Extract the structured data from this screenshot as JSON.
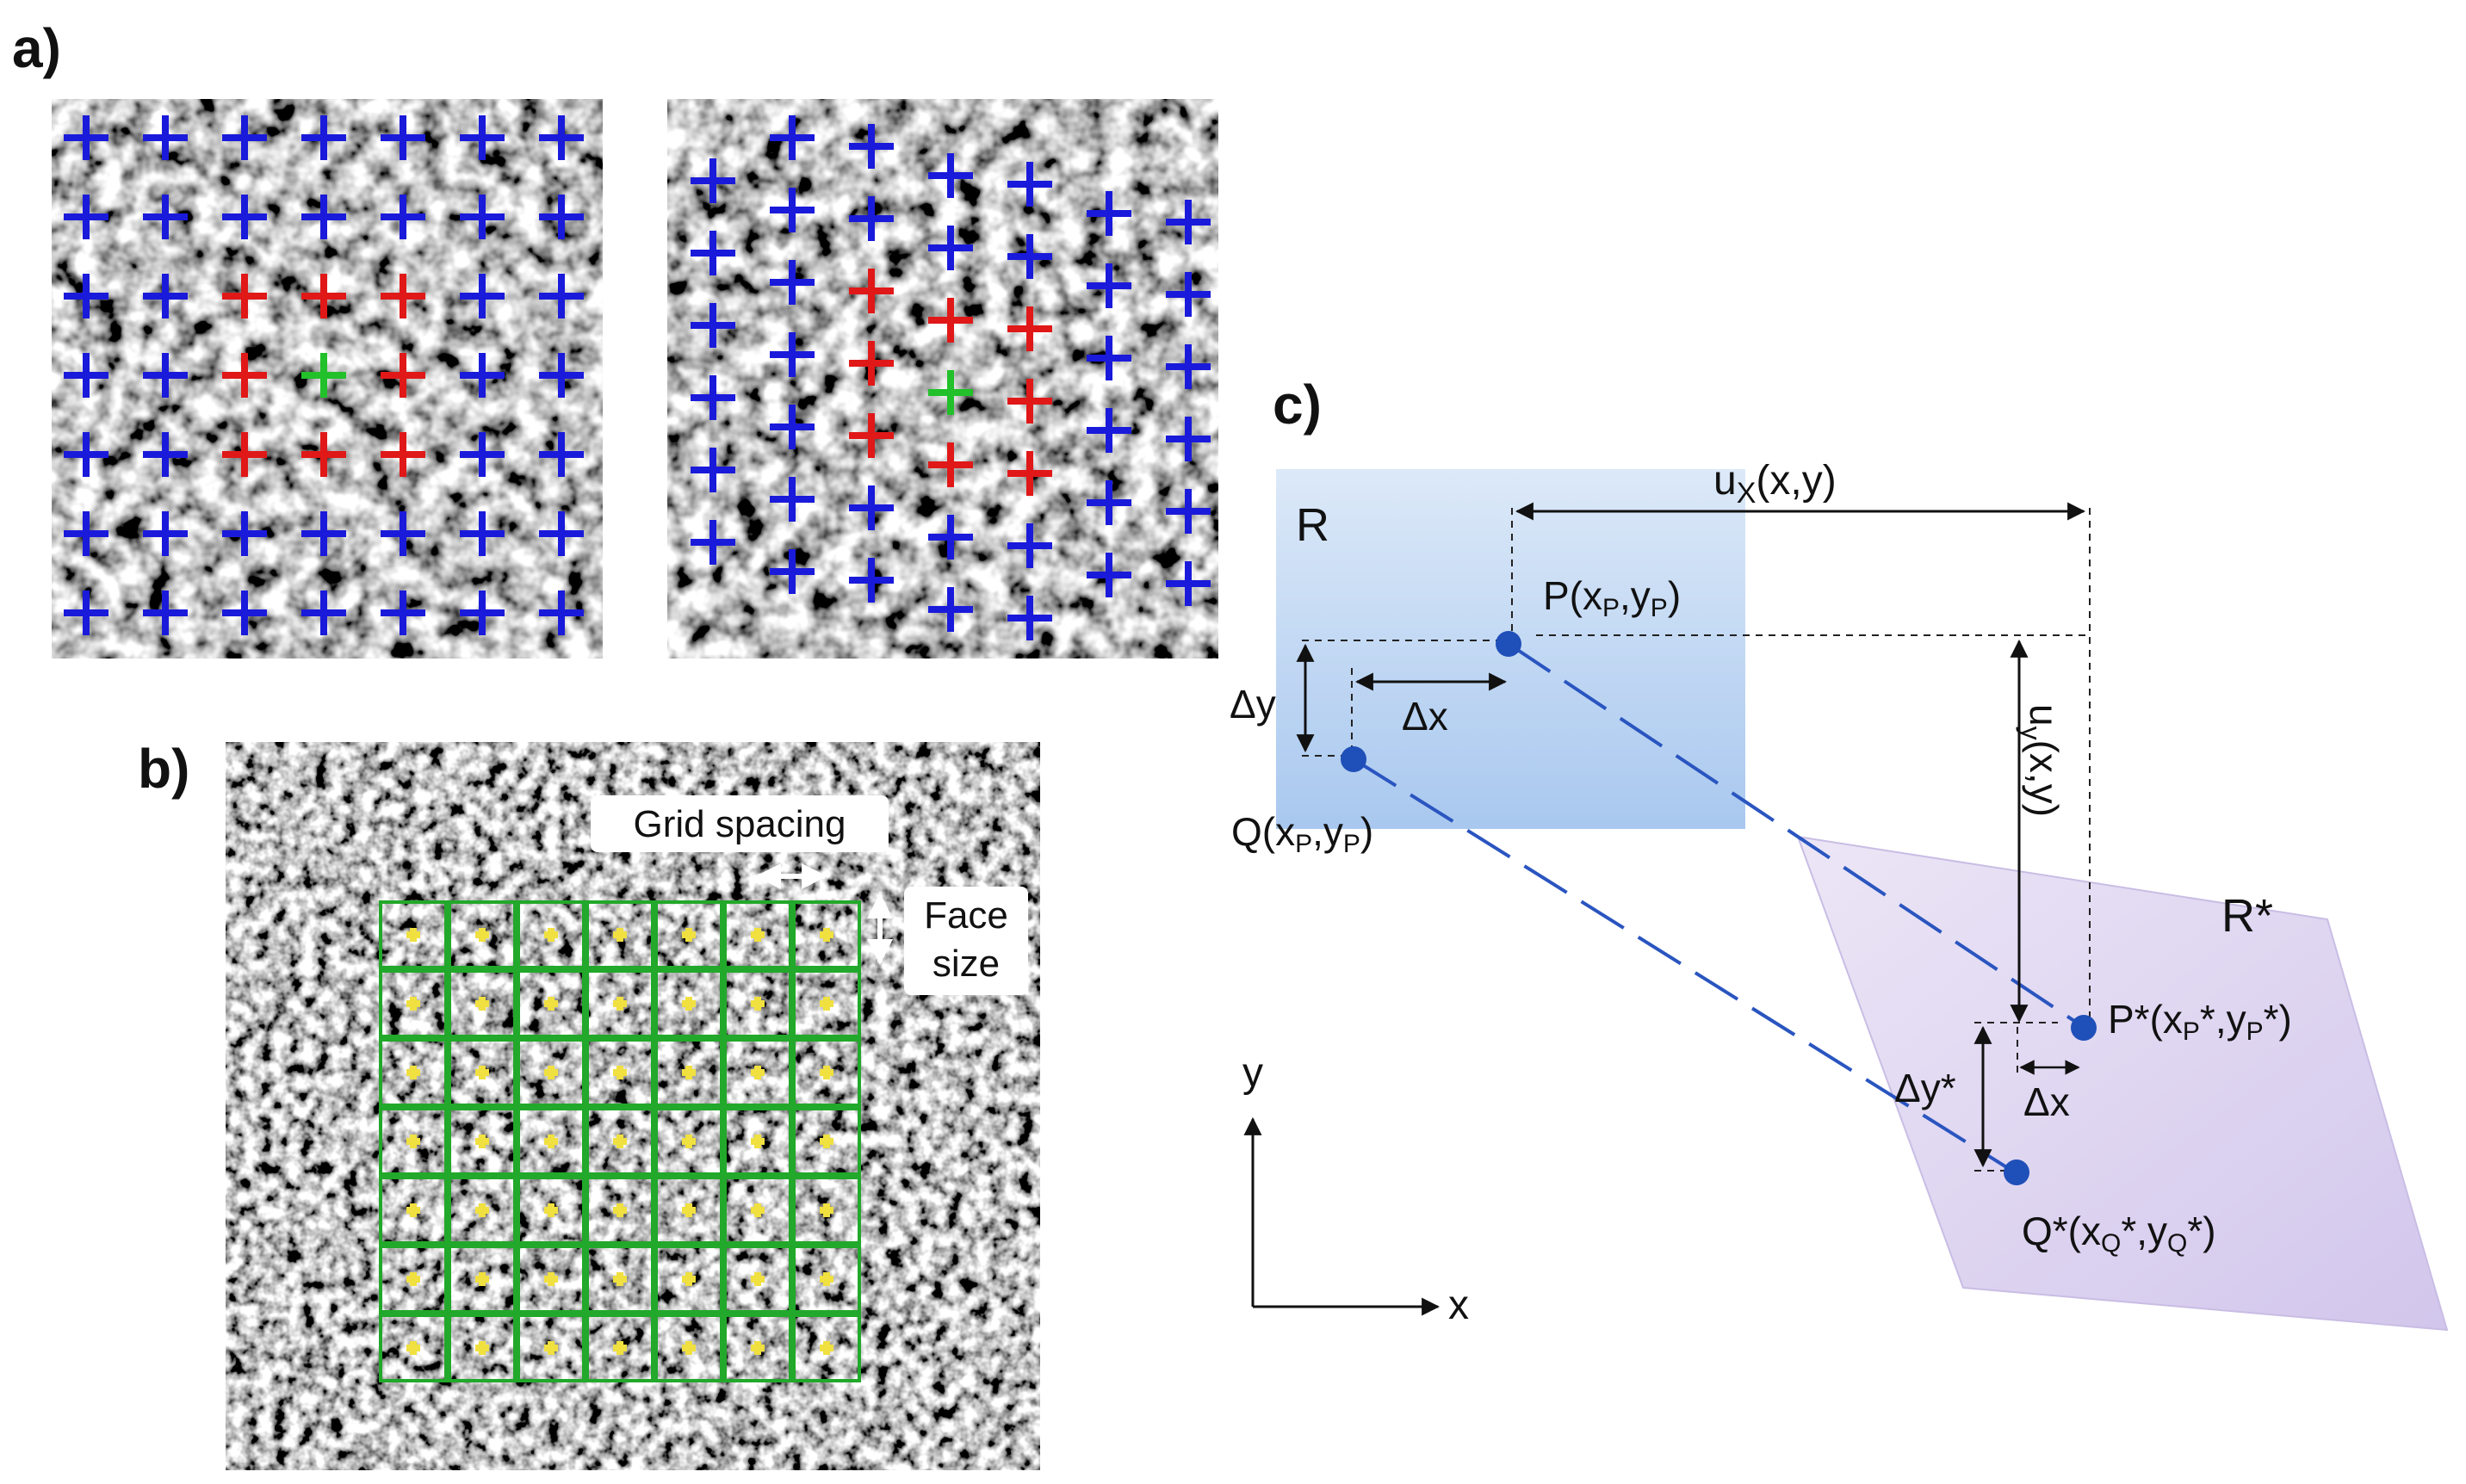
{
  "panels": {
    "a": {
      "label": "a)"
    },
    "b": {
      "label": "b)",
      "grid_spacing_label": "Grid spacing",
      "face_size_label_1": "Face",
      "face_size_label_2": "size"
    },
    "c": {
      "label": "c)",
      "region_ref": "R",
      "region_def": "R*",
      "ux_label": "uX(x,y)",
      "uy_label": "uy(x,y)",
      "p_label": "P(xP,yP)",
      "q_label": "Q(xP,yP)",
      "pstar_label": "P*(xP*,yP*)",
      "qstar_label": "Q*(xQ*,yQ*)",
      "dy_label": "Δy",
      "dx_label": "Δx",
      "dystar_label": "Δy*",
      "dxstar_label": "Δx",
      "axis_x": "x",
      "axis_y": "y"
    }
  },
  "colors": {
    "marker_blue": "#1a1adb",
    "marker_red": "#e01818",
    "marker_green": "#22c02a",
    "grid_green": "#22a82a",
    "grid_center_yellow": "#f0e040",
    "region_ref_fill": "#c7dcf4",
    "region_def_fill": "#ddd3ef",
    "point_blue": "#1f4fb8"
  },
  "icons": {
    "a_markers": "plus-marker",
    "b_spacing": "double-arrow-horizontal",
    "b_facesize": "double-arrow-vertical"
  }
}
